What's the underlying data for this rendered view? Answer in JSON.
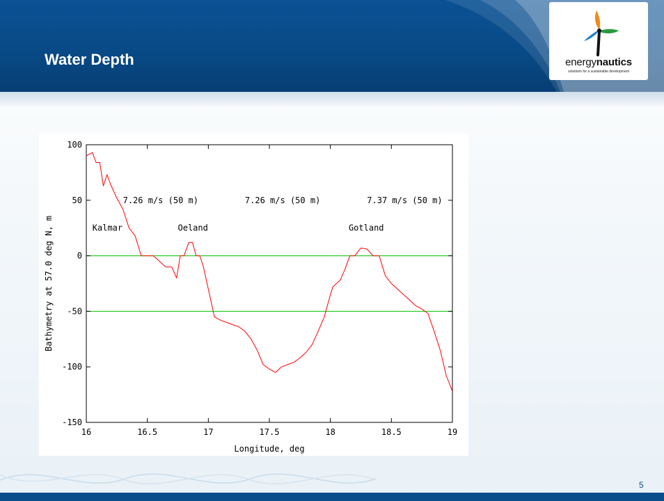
{
  "slide": {
    "title": "Water Depth",
    "page_number": "5",
    "colors": {
      "header": "#0b5294",
      "accent": "#1a4d86"
    }
  },
  "logo": {
    "brand_light": "energy",
    "brand_bold": "nautics",
    "tagline": "solutions for a sustainable development",
    "icon": "wind-turbine-icon"
  },
  "chart_data": {
    "type": "line",
    "title": "",
    "xlabel": "Longitude, deg",
    "ylabel": "Bathymetry at 57.0 deg N, m",
    "xlim": [
      16,
      19
    ],
    "ylim": [
      -150,
      100
    ],
    "xticks": [
      "16",
      "16.5",
      "17",
      "17.5",
      "18",
      "18.5",
      "19"
    ],
    "yticks": [
      "100",
      "50",
      "0",
      "-50",
      "-100",
      "-150"
    ],
    "grid": false,
    "legend": "none",
    "reference_lines": [
      {
        "y": 0,
        "color": "#00c000"
      },
      {
        "y": -50,
        "color": "#00c000"
      }
    ],
    "series": [
      {
        "color": "#ff0000",
        "x": [
          16.0,
          16.05,
          16.08,
          16.11,
          16.14,
          16.17,
          16.2,
          16.25,
          16.3,
          16.35,
          16.4,
          16.45,
          16.5,
          16.55,
          16.6,
          16.65,
          16.7,
          16.74,
          16.77,
          16.8,
          16.84,
          16.87,
          16.9,
          16.93,
          16.96,
          17.0,
          17.05,
          17.1,
          17.15,
          17.2,
          17.25,
          17.3,
          17.35,
          17.4,
          17.45,
          17.5,
          17.55,
          17.6,
          17.65,
          17.7,
          17.75,
          17.8,
          17.85,
          17.9,
          17.95,
          18.0,
          18.02,
          18.05,
          18.08,
          18.12,
          18.16,
          18.2,
          18.25,
          18.3,
          18.35,
          18.4,
          18.45,
          18.5,
          18.55,
          18.6,
          18.65,
          18.7,
          18.75,
          18.8,
          18.85,
          18.9,
          18.95,
          19.0
        ],
        "y": [
          90,
          93,
          84,
          84,
          63,
          73,
          64,
          52,
          42,
          25,
          18,
          0,
          0,
          0,
          -5,
          -10,
          -10,
          -20,
          0,
          0,
          12,
          12,
          0,
          0,
          -10,
          -30,
          -55,
          -58,
          -60,
          -62,
          -64,
          -68,
          -75,
          -85,
          -98,
          -102,
          -105,
          -100,
          -98,
          -96,
          -92,
          -87,
          -80,
          -68,
          -55,
          -35,
          -28,
          -25,
          -22,
          -12,
          0,
          0,
          7,
          6,
          0,
          0,
          -18,
          -25,
          -30,
          -35,
          -40,
          -45,
          -48,
          -52,
          -68,
          -85,
          -108,
          -122
        ]
      }
    ],
    "annotations": [
      {
        "text": "7.26 m/s (50 m)",
        "x": 16.3,
        "y": 50
      },
      {
        "text": "7.26 m/s (50 m)",
        "x": 17.3,
        "y": 50
      },
      {
        "text": "7.37 m/s (50 m)",
        "x": 18.3,
        "y": 50
      },
      {
        "text": "Kalmar",
        "x": 16.05,
        "y": 25
      },
      {
        "text": "Oeland",
        "x": 16.75,
        "y": 25
      },
      {
        "text": "Gotland",
        "x": 18.15,
        "y": 25
      }
    ]
  }
}
